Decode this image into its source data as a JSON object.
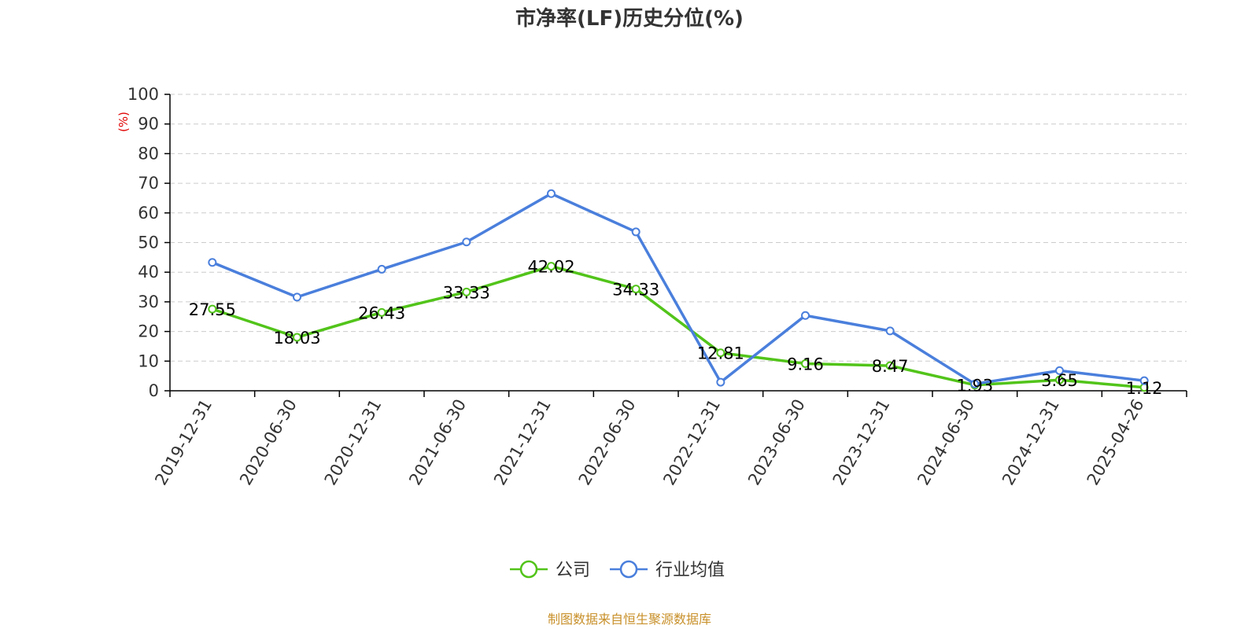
{
  "title": "市净率(LF)历史分位(%)",
  "source": "制图数据来自恒生聚源数据库",
  "chart_data": {
    "type": "line",
    "title": "市净率(LF)历史分位(%)",
    "ylabel": "(%)",
    "ylim": [
      0,
      100
    ],
    "yticks": [
      0,
      10,
      20,
      30,
      40,
      50,
      60,
      70,
      80,
      90,
      100
    ],
    "grid": true,
    "legend_position": "bottom",
    "categories": [
      "2019-12-31",
      "2020-06-30",
      "2020-12-31",
      "2021-06-30",
      "2021-12-31",
      "2022-06-30",
      "2022-12-31",
      "2023-06-30",
      "2023-12-31",
      "2024-06-30",
      "2024-12-31",
      "2025-04-26"
    ],
    "series": [
      {
        "name": "公司",
        "color": "#52c41a",
        "values": [
          27.55,
          18.03,
          26.43,
          33.33,
          42.02,
          34.33,
          12.81,
          9.16,
          8.47,
          1.93,
          3.65,
          1.12
        ],
        "show_labels": true
      },
      {
        "name": "行业均值",
        "color": "#4a7fdc",
        "values": [
          43.3,
          31.6,
          41.0,
          50.2,
          66.5,
          53.6,
          2.9,
          25.4,
          20.2,
          2.3,
          6.8,
          3.4
        ],
        "show_labels": false
      }
    ]
  }
}
